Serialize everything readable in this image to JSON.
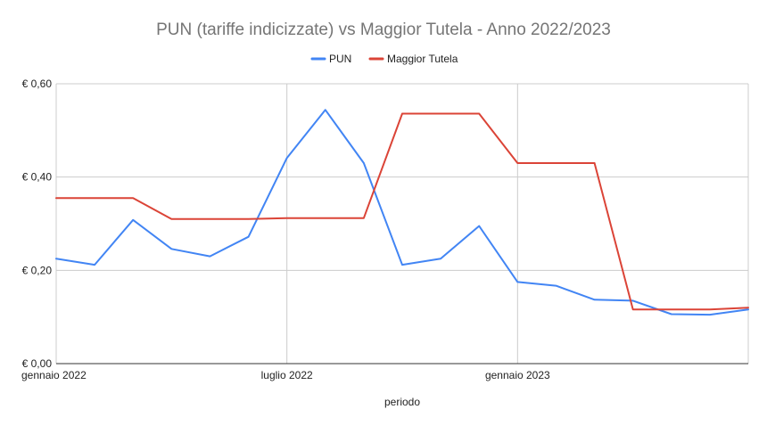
{
  "chart_data": {
    "type": "line",
    "title": "PUN (tariffe indicizzate) vs Maggior Tutela - Anno 2022/2023",
    "xlabel": "periodo",
    "ylabel": "",
    "ylim": [
      0,
      0.6
    ],
    "y_ticks": [
      "€ 0,00",
      "€ 0,20",
      "€ 0,40",
      "€ 0,60"
    ],
    "y_tick_values": [
      0,
      0.2,
      0.4,
      0.6
    ],
    "x": [
      "2022-01",
      "2022-02",
      "2022-03",
      "2022-04",
      "2022-05",
      "2022-06",
      "2022-07",
      "2022-08",
      "2022-09",
      "2022-10",
      "2022-11",
      "2022-12",
      "2023-01",
      "2023-02",
      "2023-03",
      "2023-04",
      "2023-05",
      "2023-06",
      "2023-07"
    ],
    "x_ticks": [
      {
        "label": "gennaio 2022",
        "index": 0
      },
      {
        "label": "luglio 2022",
        "index": 6
      },
      {
        "label": "gennaio 2023",
        "index": 12
      }
    ],
    "grid": true,
    "legend_position": "top",
    "series": [
      {
        "name": "PUN",
        "color": "#4285f4",
        "values": [
          0.225,
          0.212,
          0.308,
          0.246,
          0.23,
          0.272,
          0.441,
          0.544,
          0.43,
          0.212,
          0.225,
          0.295,
          0.175,
          0.167,
          0.137,
          0.135,
          0.106,
          0.105,
          0.116
        ]
      },
      {
        "name": "Maggior Tutela",
        "color": "#db4437",
        "values": [
          0.355,
          0.355,
          0.355,
          0.31,
          0.31,
          0.31,
          0.312,
          0.312,
          0.312,
          0.536,
          0.536,
          0.536,
          0.43,
          0.43,
          0.43,
          0.116,
          0.116,
          0.116,
          0.12
        ]
      }
    ]
  }
}
